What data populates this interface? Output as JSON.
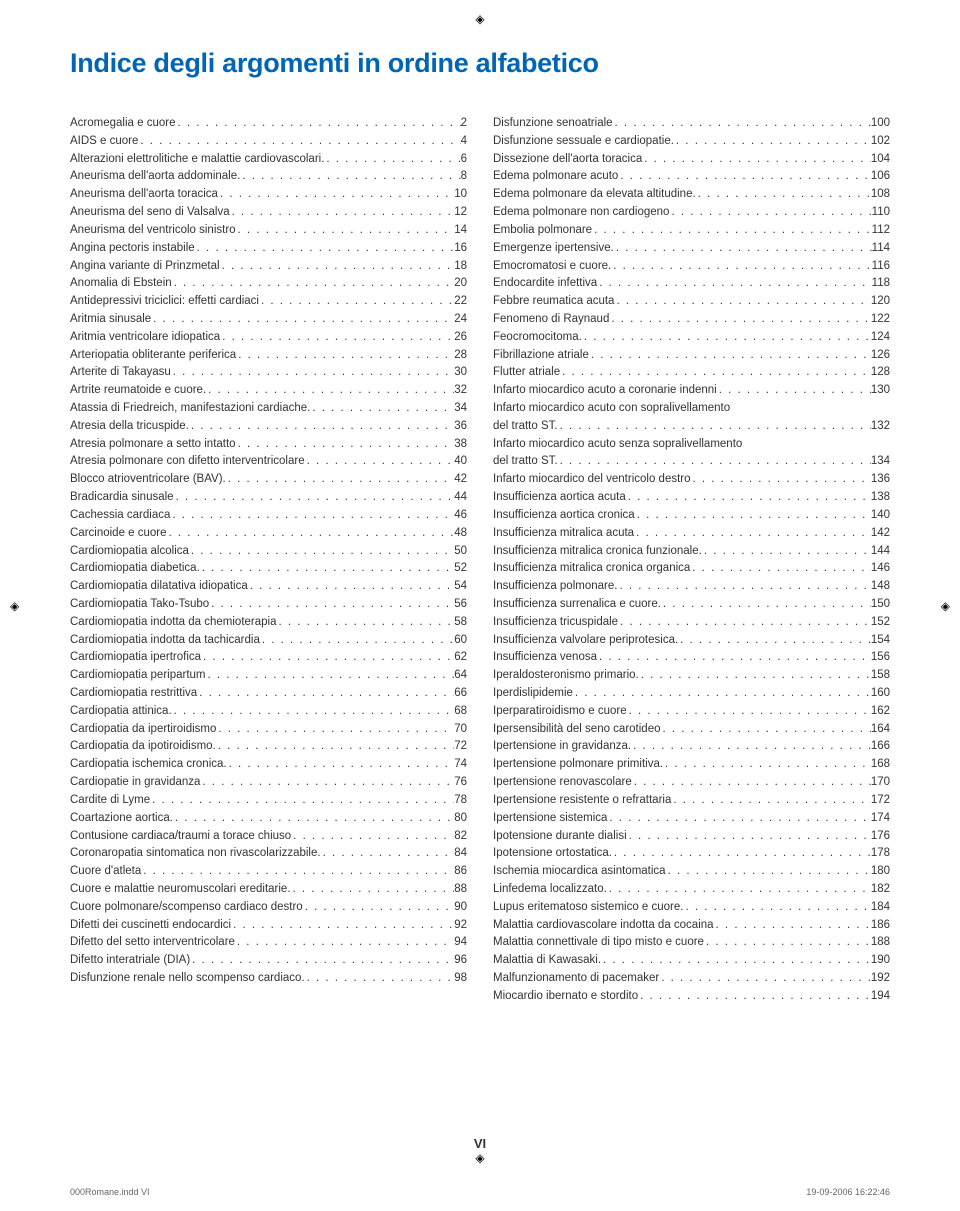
{
  "title": "Indice degli argomenti in ordine alfabetico",
  "title_color": "#0066b3",
  "title_fontsize": 27,
  "body_fontsize": 11.5,
  "body_color": "#333333",
  "background_color": "#ffffff",
  "page_number": "VI",
  "footer_left": "000Romane.indd   VI",
  "footer_right": "19-09-2006   16:22:46",
  "left_col": [
    {
      "label": "Acromegalia e cuore",
      "page": "2"
    },
    {
      "label": "AIDS e cuore",
      "page": "4"
    },
    {
      "label": "Alterazioni elettrolitiche e malattie cardiovascolari.",
      "page": "6"
    },
    {
      "label": "Aneurisma dell'aorta addominale.",
      "page": "8"
    },
    {
      "label": "Aneurisma dell'aorta toracica",
      "page": "10"
    },
    {
      "label": "Aneurisma del seno di Valsalva",
      "page": "12"
    },
    {
      "label": "Aneurisma del ventricolo sinistro",
      "page": "14"
    },
    {
      "label": "Angina pectoris instabile",
      "page": "16"
    },
    {
      "label": "Angina variante di Prinzmetal",
      "page": "18"
    },
    {
      "label": "Anomalia di Ebstein",
      "page": "20"
    },
    {
      "label": "Antidepressivi triciclici: effetti cardiaci",
      "page": "22"
    },
    {
      "label": "Aritmia sinusale",
      "page": "24"
    },
    {
      "label": "Aritmia ventricolare idiopatica",
      "page": "26"
    },
    {
      "label": "Arteriopatia obliterante periferica",
      "page": "28"
    },
    {
      "label": "Arterite di Takayasu",
      "page": "30"
    },
    {
      "label": "Artrite reumatoide e cuore.",
      "page": "32"
    },
    {
      "label": "Atassia di Friedreich, manifestazioni cardiache.",
      "page": "34"
    },
    {
      "label": "Atresia della tricuspide.",
      "page": "36"
    },
    {
      "label": "Atresia polmonare a setto intatto",
      "page": "38"
    },
    {
      "label": "Atresia polmonare con difetto interventricolare",
      "page": "40"
    },
    {
      "label": "Blocco atrioventricolare (BAV).",
      "page": "42"
    },
    {
      "label": "Bradicardia sinusale",
      "page": "44"
    },
    {
      "label": "Cachessia cardiaca",
      "page": "46"
    },
    {
      "label": "Carcinoide e cuore",
      "page": "48"
    },
    {
      "label": "Cardiomiopatia alcolica",
      "page": "50"
    },
    {
      "label": "Cardiomiopatia diabetica.",
      "page": "52"
    },
    {
      "label": "Cardiomiopatia dilatativa idiopatica",
      "page": "54"
    },
    {
      "label": "Cardiomiopatia Tako-Tsubo",
      "page": "56"
    },
    {
      "label": "Cardiomiopatia indotta da chemioterapia",
      "page": "58"
    },
    {
      "label": "Cardiomiopatia indotta da tachicardia",
      "page": "60"
    },
    {
      "label": "Cardiomiopatia ipertrofica",
      "page": "62"
    },
    {
      "label": "Cardiomiopatia peripartum",
      "page": "64"
    },
    {
      "label": "Cardiomiopatia restrittiva",
      "page": "66"
    },
    {
      "label": "Cardiopatia attinica.",
      "page": "68"
    },
    {
      "label": "Cardiopatia da ipertiroidismo",
      "page": "70"
    },
    {
      "label": "Cardiopatia da ipotiroidismo.",
      "page": "72"
    },
    {
      "label": "Cardiopatia ischemica cronica.",
      "page": "74"
    },
    {
      "label": "Cardiopatie in gravidanza",
      "page": "76"
    },
    {
      "label": "Cardite di Lyme",
      "page": "78"
    },
    {
      "label": "Coartazione aortica.",
      "page": "80"
    },
    {
      "label": "Contusione cardiaca/traumi a torace chiuso",
      "page": "82"
    },
    {
      "label": "Coronaropatia sintomatica non rivascolarizzabile.",
      "page": "84"
    },
    {
      "label": "Cuore d'atleta",
      "page": "86"
    },
    {
      "label": "Cuore e malattie neuromuscolari ereditarie.",
      "page": "88"
    },
    {
      "label": "Cuore polmonare/scompenso cardiaco destro",
      "page": "90"
    },
    {
      "label": "Difetti dei cuscinetti endocardici",
      "page": "92"
    },
    {
      "label": "Difetto del setto interventricolare",
      "page": "94"
    },
    {
      "label": "Difetto interatriale (DIA)",
      "page": "96"
    },
    {
      "label": "Disfunzione renale nello scompenso cardiaco.",
      "page": "98"
    }
  ],
  "right_col": [
    {
      "label": "Disfunzione senoatriale",
      "page": "100"
    },
    {
      "label": "Disfunzione sessuale e cardiopatie.",
      "page": "102"
    },
    {
      "label": "Dissezione dell'aorta toracica",
      "page": "104"
    },
    {
      "label": "Edema polmonare acuto",
      "page": "106"
    },
    {
      "label": "Edema polmonare da elevata altitudine.",
      "page": "108"
    },
    {
      "label": "Edema polmonare non cardiogeno",
      "page": "110"
    },
    {
      "label": "Embolia polmonare",
      "page": "112"
    },
    {
      "label": "Emergenze ipertensive.",
      "page": "114"
    },
    {
      "label": "Emocromatosi e cuore.",
      "page": "116"
    },
    {
      "label": "Endocardite infettiva",
      "page": "118"
    },
    {
      "label": "Febbre reumatica acuta",
      "page": "120"
    },
    {
      "label": "Fenomeno di Raynaud",
      "page": "122"
    },
    {
      "label": "Feocromocitoma.",
      "page": "124"
    },
    {
      "label": "Fibrillazione atriale",
      "page": "126"
    },
    {
      "label": "Flutter atriale",
      "page": "128"
    },
    {
      "label": "Infarto miocardico acuto a coronarie indenni",
      "page": "130"
    },
    {
      "label": "Infarto miocardico acuto con sopralivellamento",
      "page": ""
    },
    {
      "label": "del tratto ST.",
      "page": "132"
    },
    {
      "label": "Infarto miocardico acuto senza sopralivellamento",
      "page": ""
    },
    {
      "label": "del tratto ST.",
      "page": "134"
    },
    {
      "label": "Infarto miocardico del ventricolo destro",
      "page": "136"
    },
    {
      "label": "Insufficienza aortica acuta",
      "page": "138"
    },
    {
      "label": "Insufficienza aortica cronica",
      "page": "140"
    },
    {
      "label": "Insufficienza mitralica acuta",
      "page": "142"
    },
    {
      "label": "Insufficienza mitralica cronica funzionale.",
      "page": "144"
    },
    {
      "label": "Insufficienza mitralica cronica organica",
      "page": "146"
    },
    {
      "label": "Insufficienza polmonare.",
      "page": "148"
    },
    {
      "label": "Insufficienza surrenalica e cuore.",
      "page": "150"
    },
    {
      "label": "Insufficienza tricuspidale",
      "page": "152"
    },
    {
      "label": "Insufficienza valvolare periprotesica.",
      "page": "154"
    },
    {
      "label": "Insufficienza venosa",
      "page": "156"
    },
    {
      "label": "Iperaldosteronismo primario.",
      "page": "158"
    },
    {
      "label": "Iperdislipidemie",
      "page": "160"
    },
    {
      "label": "Iperparatiroidismo e cuore",
      "page": "162"
    },
    {
      "label": "Ipersensibilità del seno carotideo",
      "page": "164"
    },
    {
      "label": "Ipertensione in gravidanza.",
      "page": "166"
    },
    {
      "label": "Ipertensione polmonare primitiva.",
      "page": "168"
    },
    {
      "label": "Ipertensione renovascolare",
      "page": "170"
    },
    {
      "label": "Ipertensione resistente o refrattaria",
      "page": "172"
    },
    {
      "label": "Ipertensione sistemica",
      "page": "174"
    },
    {
      "label": "Ipotensione durante dialisi",
      "page": "176"
    },
    {
      "label": "Ipotensione ortostatica.",
      "page": "178"
    },
    {
      "label": "Ischemia miocardica asintomatica",
      "page": "180"
    },
    {
      "label": "Linfedema localizzato.",
      "page": "182"
    },
    {
      "label": "Lupus eritematoso sistemico e cuore.",
      "page": "184"
    },
    {
      "label": "Malattia cardiovascolare indotta da cocaina",
      "page": "186"
    },
    {
      "label": "Malattia connettivale di tipo misto e cuore",
      "page": "188"
    },
    {
      "label": "Malattia di Kawasaki.",
      "page": "190"
    },
    {
      "label": "Malfunzionamento di pacemaker",
      "page": "192"
    },
    {
      "label": "Miocardio ibernato e stordito",
      "page": "194"
    }
  ]
}
